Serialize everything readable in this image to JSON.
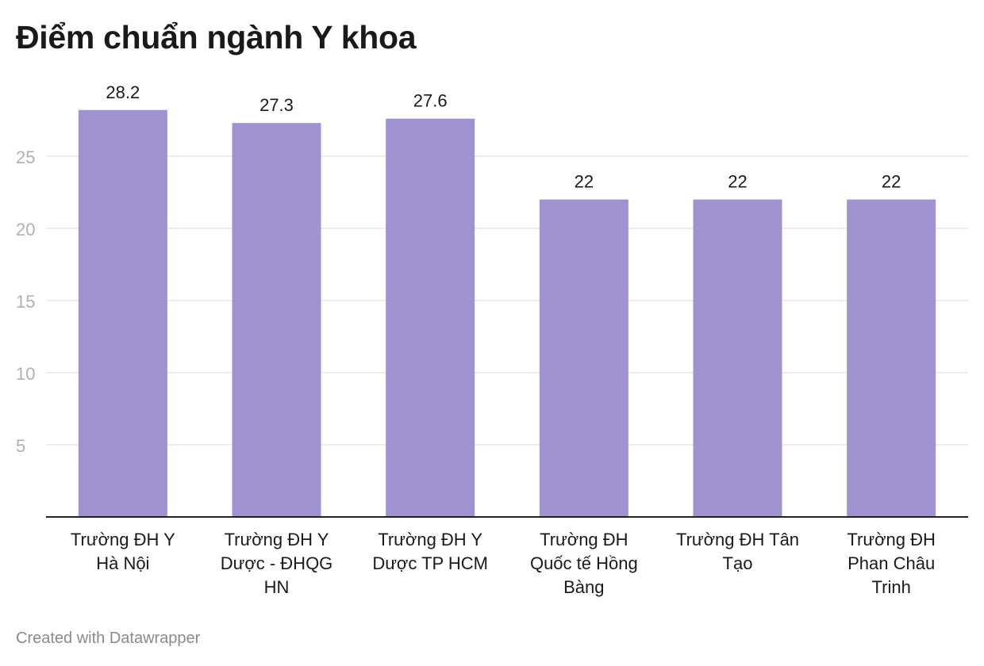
{
  "title": "Điểm chuẩn ngành Y khoa",
  "footer": "Created with Datawrapper",
  "colors": {
    "bar": "#a092d0",
    "grid": "#e5e5e5",
    "axis": "#222222",
    "tick_label": "#b0b0b0",
    "value_label": "#1a1a1a",
    "category_label": "#1a1a1a"
  },
  "chart_data": {
    "type": "bar",
    "title": "Điểm chuẩn ngành Y khoa",
    "categories": [
      [
        "Trường ĐH Y",
        "Hà Nội"
      ],
      [
        "Trường ĐH Y",
        "Dược - ĐHQG",
        "HN"
      ],
      [
        "Trường ĐH Y",
        "Dược TP HCM"
      ],
      [
        "Trường ĐH",
        "Quốc tế Hồng",
        "Bàng"
      ],
      [
        "Trường ĐH Tân",
        "Tạo"
      ],
      [
        "Trường ĐH",
        "Phan Châu",
        "Trinh"
      ]
    ],
    "values": [
      28.2,
      27.3,
      27.6,
      22,
      22,
      22
    ],
    "value_labels": [
      "28.2",
      "27.3",
      "27.6",
      "22",
      "22",
      "22"
    ],
    "ylim": [
      0,
      28.2
    ],
    "yticks": [
      5,
      10,
      15,
      20,
      25
    ],
    "grid": true,
    "legend": "none"
  }
}
